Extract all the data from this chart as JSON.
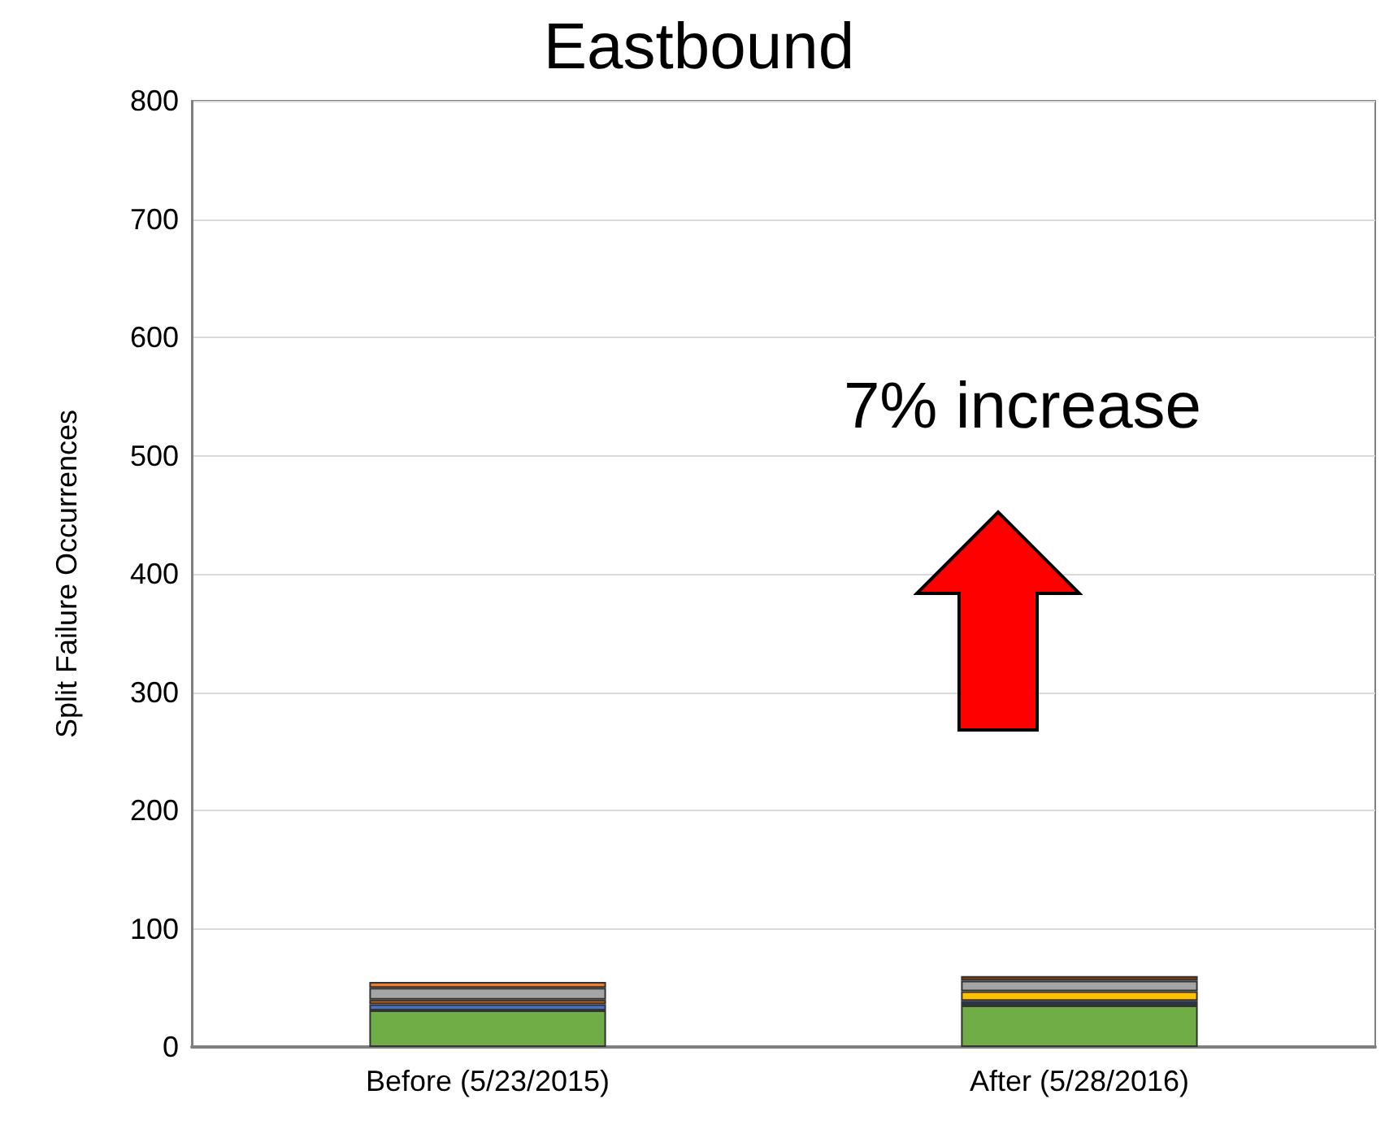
{
  "chart_data": {
    "type": "bar",
    "title": "Eastbound",
    "ylabel": "Split Failure Occurrences",
    "categories": [
      "Before (5/23/2015)",
      "After (5/28/2016)"
    ],
    "stacked": true,
    "series": [
      {
        "colors": [
          "#70ad47",
          "#70ad47"
        ],
        "values": [
          31,
          35
        ]
      },
      {
        "colors": [
          "#4472c4",
          "#203864"
        ],
        "values": [
          5,
          4
        ]
      },
      {
        "colors": [
          "#c55a11",
          "#ffc000"
        ],
        "values": [
          4,
          8
        ]
      },
      {
        "colors": [
          "#a5a5a5",
          "#a5a5a5"
        ],
        "values": [
          10,
          9
        ]
      },
      {
        "colors": [
          "#ed7d31",
          "#843c0c"
        ],
        "values": [
          5,
          4
        ]
      }
    ],
    "ylim": [
      0,
      800
    ],
    "yticks": [
      0,
      100,
      200,
      300,
      400,
      500,
      600,
      700,
      800
    ],
    "grid": "y",
    "annotations": [
      "7% increase"
    ]
  }
}
